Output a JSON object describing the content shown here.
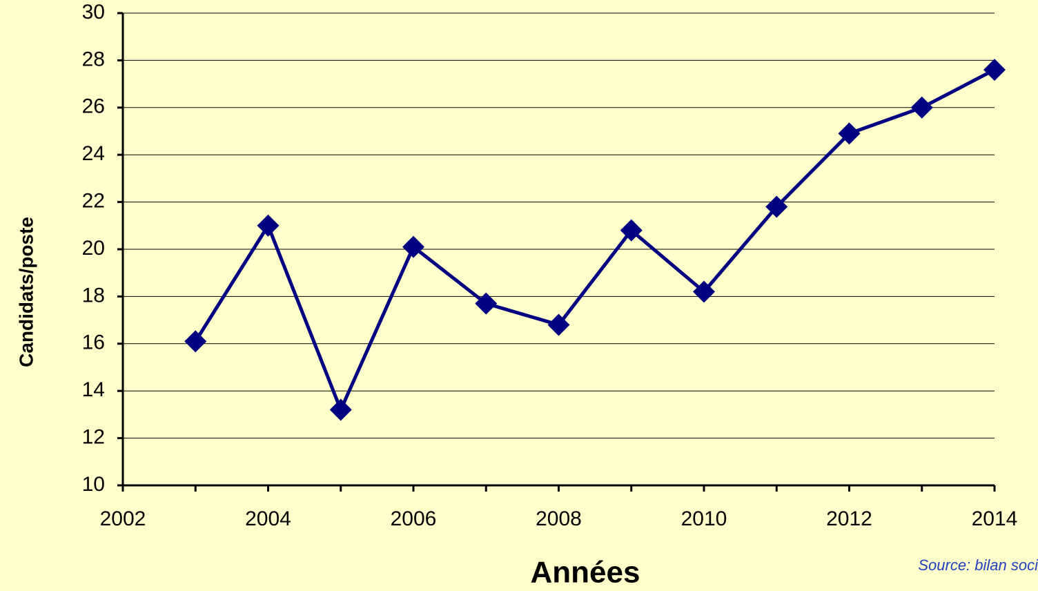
{
  "chart_data": {
    "type": "line",
    "x_label": "Années",
    "y_label": "Candidats/poste",
    "source": "Source: bilan soci",
    "x": [
      2003,
      2004,
      2005,
      2006,
      2007,
      2008,
      2009,
      2010,
      2011,
      2012,
      2013,
      2014
    ],
    "series": [
      {
        "name": "Candidats/poste",
        "color": "#000080",
        "values": [
          16.1,
          21.0,
          13.2,
          20.1,
          17.7,
          16.8,
          20.8,
          18.2,
          21.8,
          24.9,
          26.0,
          27.6
        ]
      }
    ],
    "xlim": [
      2002,
      2014
    ],
    "xticks": [
      2002,
      2004,
      2006,
      2008,
      2010,
      2012,
      2014
    ],
    "ylim": [
      10,
      30
    ],
    "yticks": [
      10,
      12,
      14,
      16,
      18,
      20,
      22,
      24,
      26,
      28,
      30
    ],
    "grid": true
  }
}
